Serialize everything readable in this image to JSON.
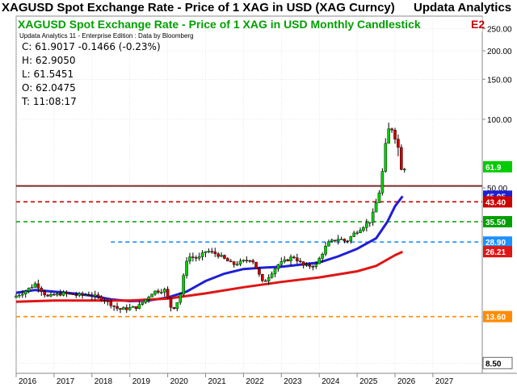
{
  "window": {
    "title": "XAGUSD Spot Exchange Rate - Price of 1 XAG in USD (XAG Curncy)",
    "brand": "Updata Analytics"
  },
  "chart_header": {
    "subtitle": "XAGUSD Spot Exchange Rate - Price of 1 XAG in USD Monthly Candlestick",
    "edition_badge": "E2",
    "credit": "Updata Analytics 11 - Enterprise Edition : Data by Bloomberg"
  },
  "ohlc": {
    "close": "C: 61.9017  -0.1466 (-0.23%)",
    "high": "H: 62.9050",
    "low": "L: 61.5451",
    "open": "O: 62.0475",
    "time": "T: 11:08:17"
  },
  "colors": {
    "up": "#00cc00",
    "down": "#cc0000",
    "ma_fast": "#1f1fd6",
    "ma_slow": "#e01515",
    "grid": "#d8d8d8",
    "resistance": "#7a2a2a"
  },
  "chart_data": {
    "type": "candlestick",
    "y_scale": "log",
    "ylim": [
      8,
      290
    ],
    "y_ticks": [
      8.5,
      50.0,
      100.0,
      150.0,
      200.0,
      250.0
    ],
    "y_tick_labels": [
      "8.50",
      "50.00",
      "100.00",
      "150.00",
      "200.00",
      "250.00"
    ],
    "x_ticks": [
      "2016",
      "2017",
      "2018",
      "2019",
      "2020",
      "2021",
      "2022",
      "2023",
      "2024",
      "2025",
      "2026",
      "2027"
    ],
    "candle_anchors": [
      [
        2016.0,
        16.5
      ],
      [
        2016.3,
        17.5
      ],
      [
        2016.6,
        19.0
      ],
      [
        2016.9,
        16.6
      ],
      [
        2017.3,
        17.2
      ],
      [
        2017.7,
        16.9
      ],
      [
        2018.0,
        17.0
      ],
      [
        2018.4,
        16.2
      ],
      [
        2018.8,
        14.6
      ],
      [
        2019.3,
        15.0
      ],
      [
        2019.7,
        17.5
      ],
      [
        2020.0,
        17.8
      ],
      [
        2020.2,
        14.5
      ],
      [
        2020.4,
        16.5
      ],
      [
        2020.6,
        25.0
      ],
      [
        2020.9,
        24.5
      ],
      [
        2021.1,
        26.5
      ],
      [
        2021.4,
        25.5
      ],
      [
        2021.8,
        23.0
      ],
      [
        2022.0,
        23.5
      ],
      [
        2022.3,
        24.5
      ],
      [
        2022.6,
        19.0
      ],
      [
        2022.8,
        21.0
      ],
      [
        2023.0,
        23.0
      ],
      [
        2023.4,
        25.0
      ],
      [
        2023.7,
        22.5
      ],
      [
        2024.0,
        23.0
      ],
      [
        2024.3,
        28.5
      ],
      [
        2024.6,
        30.0
      ],
      [
        2024.8,
        29.0
      ],
      [
        2025.0,
        31.5
      ],
      [
        2025.2,
        33.5
      ],
      [
        2025.45,
        36.0
      ],
      [
        2025.7,
        50.0
      ],
      [
        2025.85,
        80.0
      ],
      [
        2025.95,
        95.0
      ],
      [
        2026.05,
        88.0
      ],
      [
        2026.15,
        78.0
      ],
      [
        2026.25,
        62.0
      ]
    ],
    "series": [
      {
        "name": "45.95",
        "values": [
          [
            2016.0,
            17.3
          ],
          [
            2016.5,
            17.8
          ],
          [
            2017.0,
            17.5
          ],
          [
            2017.5,
            17.2
          ],
          [
            2018.0,
            16.8
          ],
          [
            2018.5,
            16.2
          ],
          [
            2019.0,
            15.9
          ],
          [
            2019.5,
            16.0
          ],
          [
            2020.0,
            16.5
          ],
          [
            2020.5,
            17.5
          ],
          [
            2021.0,
            19.5
          ],
          [
            2021.5,
            21.0
          ],
          [
            2022.0,
            22.0
          ],
          [
            2022.5,
            22.3
          ],
          [
            2023.0,
            22.5
          ],
          [
            2023.5,
            23.0
          ],
          [
            2024.0,
            23.5
          ],
          [
            2024.5,
            25.0
          ],
          [
            2025.0,
            27.0
          ],
          [
            2025.5,
            30.0
          ],
          [
            2025.8,
            35.5
          ],
          [
            2026.0,
            41.5
          ],
          [
            2026.2,
            45.95
          ]
        ]
      },
      {
        "name": "26.21",
        "values": [
          [
            2016.0,
            15.8
          ],
          [
            2017.0,
            16.0
          ],
          [
            2018.0,
            16.0
          ],
          [
            2019.0,
            16.0
          ],
          [
            2020.0,
            16.3
          ],
          [
            2021.0,
            17.2
          ],
          [
            2022.0,
            18.3
          ],
          [
            2023.0,
            19.3
          ],
          [
            2024.0,
            20.2
          ],
          [
            2025.0,
            21.5
          ],
          [
            2025.5,
            22.7
          ],
          [
            2026.0,
            25.3
          ],
          [
            2026.2,
            26.21
          ]
        ]
      }
    ],
    "horizontal_lines": [
      {
        "label": "61.9",
        "value": 61.9,
        "style": "price",
        "color": "#00cc00"
      },
      {
        "label": "",
        "value": 51.0,
        "style": "solid",
        "color": "#7a2a2a"
      },
      {
        "label": "45.95",
        "value": 45.95,
        "style": "ma",
        "color": "#1f1fd6"
      },
      {
        "label": "43.40",
        "value": 43.4,
        "style": "dashed",
        "color": "#cc0000"
      },
      {
        "label": "35.50",
        "value": 35.5,
        "style": "dashed",
        "color": "#00a000"
      },
      {
        "label": "28.90",
        "value": 28.9,
        "style": "dashed",
        "color": "#1e90ff",
        "from": 2018.5
      },
      {
        "label": "26.21",
        "value": 26.21,
        "style": "ma",
        "color": "#e01515"
      },
      {
        "label": "13.60",
        "value": 13.6,
        "style": "dashed",
        "color": "#ff8c00"
      },
      {
        "label": "8.50",
        "value": 8.5,
        "style": "price",
        "color": "#ffffff"
      }
    ]
  }
}
